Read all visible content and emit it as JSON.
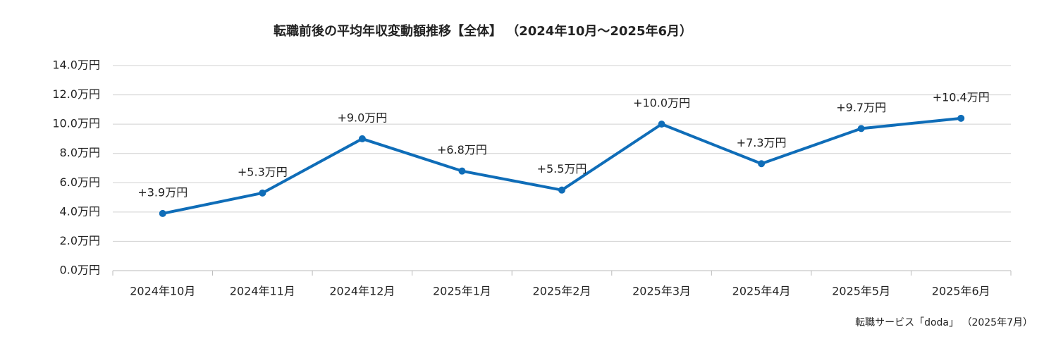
{
  "chart_data": {
    "type": "line",
    "title": "転職前後の平均年収変動額推移【全体】 （2024年10月～2025年6月）",
    "note": "転職サービス「doda」 （2025年7月）",
    "categories": [
      "2024年10月",
      "2024年11月",
      "2024年12月",
      "2025年1月",
      "2025年2月",
      "2025年3月",
      "2025年4月",
      "2025年5月",
      "2025年6月"
    ],
    "series": [
      {
        "name": "平均年収変動額",
        "color": "#0f6db8",
        "values": [
          3.9,
          5.3,
          9.0,
          6.8,
          5.5,
          10.0,
          7.3,
          9.7,
          10.4
        ],
        "value_labels": [
          "+3.9万円",
          "+5.3万円",
          "+9.0万円",
          "+6.8万円",
          "+5.5万円",
          "+10.0万円",
          "+7.3万円",
          "+9.7万円",
          "+10.4万円"
        ]
      }
    ],
    "ylim": [
      0,
      14
    ],
    "yticks": [
      {
        "value": 0,
        "label": "0.0万円"
      },
      {
        "value": 2,
        "label": "2.0万円"
      },
      {
        "value": 4,
        "label": "4.0万円"
      },
      {
        "value": 6,
        "label": "6.0万円"
      },
      {
        "value": 8,
        "label": "8.0万円"
      },
      {
        "value": 10,
        "label": "10.0万円"
      },
      {
        "value": 12,
        "label": "12.0万円"
      },
      {
        "value": 14,
        "label": "14.0万円"
      }
    ],
    "grid": true
  }
}
